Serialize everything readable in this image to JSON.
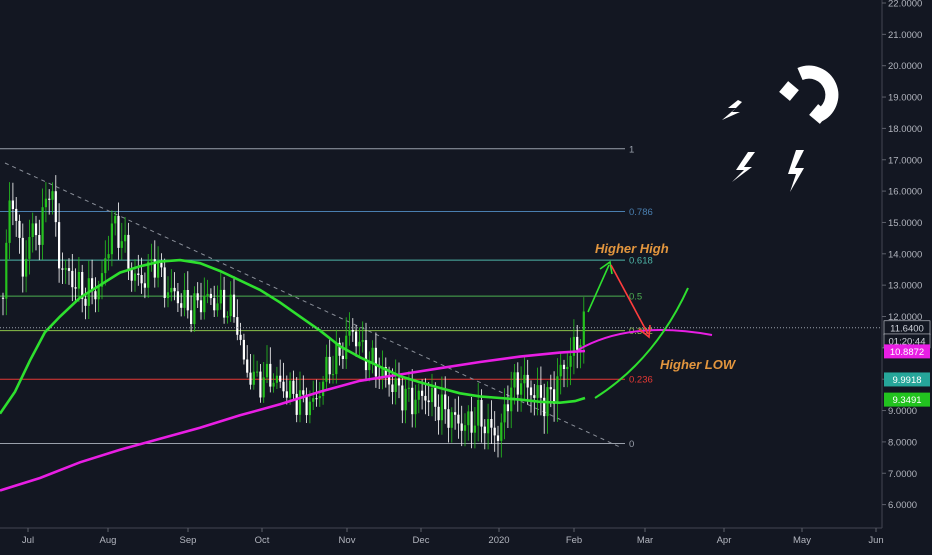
{
  "chart_data": {
    "type": "candlestick",
    "x_ticks": [
      "Jul",
      "Aug",
      "Sep",
      "Oct",
      "Nov",
      "Dec",
      "2020",
      "Feb",
      "Mar",
      "Apr",
      "May",
      "Jun"
    ],
    "y_ticks": [
      "22.0000",
      "21.0000",
      "20.0000",
      "19.0000",
      "18.0000",
      "17.0000",
      "16.0000",
      "15.0000",
      "14.0000",
      "13.0000",
      "12.0000",
      "11.0000",
      "10.0000",
      "9.0000",
      "8.0000",
      "7.0000",
      "6.0000"
    ],
    "ylim": [
      5.5,
      22.2
    ],
    "fib_levels": [
      {
        "label": "1",
        "value": 17.35,
        "color": "#9aa0ab"
      },
      {
        "label": "0.786",
        "value": 15.35,
        "color": "#4a7fb0"
      },
      {
        "label": "0.618",
        "value": 13.8,
        "color": "#4fb6a8"
      },
      {
        "label": "0.5",
        "value": 12.65,
        "color": "#4caf50"
      },
      {
        "label": "0.382",
        "value": 11.55,
        "color": "#8bc34a"
      },
      {
        "label": "0.236",
        "value": 10.0,
        "color": "#e53935"
      },
      {
        "label": "0",
        "value": 7.95,
        "color": "#9aa0ab"
      }
    ],
    "price_labels": [
      {
        "text": "11.6400",
        "value": 11.64,
        "bg": "#131722",
        "fg": "#d1d4dc"
      },
      {
        "text": "01:20:44",
        "value": 11.22,
        "bg": "#131722",
        "fg": "#d1d4dc"
      },
      {
        "text": "10.8872",
        "value": 10.8872,
        "bg": "#e91ee4",
        "fg": "#ffffff"
      },
      {
        "text": "9.9918",
        "value": 9.9918,
        "bg": "#26a69a",
        "fg": "#ffffff"
      },
      {
        "text": "9.3491",
        "value": 9.3491,
        "bg": "#22c31f",
        "fg": "#ffffff"
      }
    ],
    "annotations": [
      "Higher High",
      "Higher LOW"
    ],
    "current_price": 11.64,
    "ma_fast_color": "#2ee02e",
    "ma_slow_color": "#e91ee4",
    "up_color": "#26c21f",
    "down_color": "#ffffff"
  }
}
